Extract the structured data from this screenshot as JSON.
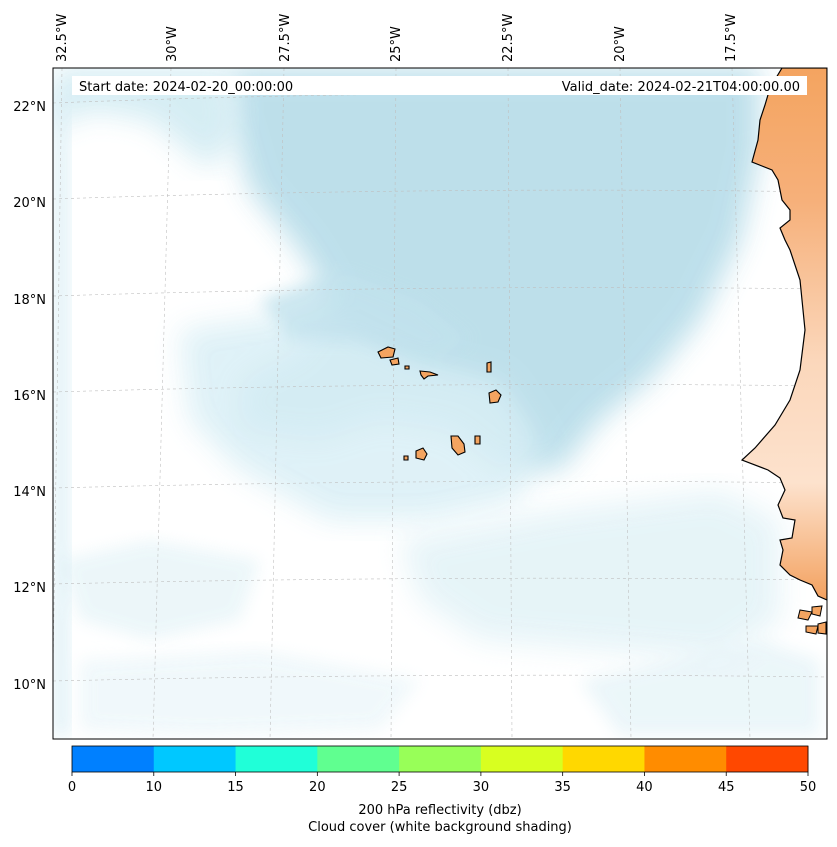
{
  "map": {
    "start_date": "Start date: 2024-02-20_00:00:00",
    "valid_date": "Valid_date: 2024-02-21T04:00:00.00",
    "lon_labels": [
      "32.5°W",
      "30°W",
      "27.5°W",
      "25°W",
      "22.5°W",
      "20°W",
      "17.5°W"
    ],
    "lat_labels": [
      "22°N",
      "20°N",
      "18°N",
      "16°N",
      "14°N",
      "12°N",
      "10°N"
    ]
  },
  "colorbar": {
    "ticks": [
      "0",
      "10",
      "15",
      "20",
      "25",
      "30",
      "35",
      "40",
      "45",
      "50"
    ],
    "colors": [
      "#0080ff",
      "#00c8ff",
      "#20ffd8",
      "#60ff90",
      "#98ff58",
      "#d8ff20",
      "#ffd800",
      "#ff8c00",
      "#ff4800"
    ],
    "label_line1": "200 hPa reflectivity (dbz)",
    "label_line2": "Cloud cover (white background shading)"
  },
  "colors": {
    "cloud": "#add8e6",
    "land_dark": "#f4a460",
    "land_light": "#fde0c8",
    "coast": "#000000"
  }
}
